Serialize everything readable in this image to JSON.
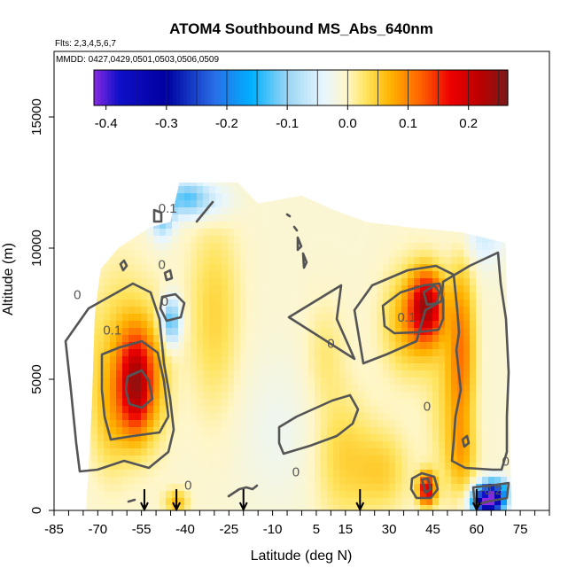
{
  "chart_data": {
    "type": "heatmap",
    "title": "ATOM4 Southbound MS_Abs_640nm",
    "subtitle_lines": [
      "Flts: 2,3,4,5,6,7",
      "MMDD: 0427,0429,0501,0503,0506,0509"
    ],
    "xlabel": "Latitude (deg N)",
    "ylabel": "Altitude (m)",
    "xlim": [
      -85,
      85
    ],
    "ylim": [
      0,
      17500
    ],
    "x_tick_labels": [
      "-85",
      "-70",
      "-55",
      "-40",
      "-25",
      "-10",
      "5",
      "15",
      "30",
      "45",
      "60",
      "75"
    ],
    "x_tick_values": [
      -85,
      -70,
      -55,
      -40,
      -25,
      -10,
      5,
      15,
      30,
      45,
      60,
      75
    ],
    "x_minor_step": 5,
    "y_tick_labels": [
      "0",
      "5000",
      "10000",
      "15000"
    ],
    "y_tick_values": [
      0,
      5000,
      10000,
      15000
    ],
    "colorbar": {
      "range": [
        -0.42,
        0.265
      ],
      "tick_labels": [
        "-0.4",
        "-0.3",
        "-0.2",
        "-0.1",
        "0.0",
        "0.1",
        "0.2"
      ],
      "tick_values": [
        -0.4,
        -0.3,
        -0.2,
        -0.1,
        0.0,
        0.1,
        0.2
      ],
      "stops": [
        {
          "v": -0.42,
          "c": "#8a2be2"
        },
        {
          "v": -0.38,
          "c": "#1010c8"
        },
        {
          "v": -0.3,
          "c": "#0000a0"
        },
        {
          "v": -0.22,
          "c": "#2a6ee8"
        },
        {
          "v": -0.16,
          "c": "#00b0ff"
        },
        {
          "v": -0.1,
          "c": "#9ad6f5"
        },
        {
          "v": -0.04,
          "c": "#e8f6ff"
        },
        {
          "v": 0.0,
          "c": "#fff6c8"
        },
        {
          "v": 0.03,
          "c": "#ffe45e"
        },
        {
          "v": 0.07,
          "c": "#ffb400"
        },
        {
          "v": 0.12,
          "c": "#ff6400"
        },
        {
          "v": 0.17,
          "c": "#ee0000"
        },
        {
          "v": 0.22,
          "c": "#bb0000"
        },
        {
          "v": 0.265,
          "c": "#7a1a1a"
        }
      ]
    },
    "field": {
      "background_value": -0.008,
      "domain": [
        [
          -74,
          0
        ],
        [
          -72,
          4000
        ],
        [
          -71,
          7500
        ],
        [
          -69,
          9200
        ],
        [
          -63,
          10000
        ],
        [
          -52,
          10800
        ],
        [
          -45,
          11000
        ],
        [
          -42,
          12500
        ],
        [
          -22,
          12500
        ],
        [
          -15,
          11700
        ],
        [
          0,
          12000
        ],
        [
          10,
          11500
        ],
        [
          22,
          11000
        ],
        [
          36,
          10800
        ],
        [
          55,
          10600
        ],
        [
          70,
          10200
        ],
        [
          72,
          0
        ]
      ],
      "features": [
        {
          "lat": -57,
          "alt": 4800,
          "v": 0.2,
          "rlat": 5.5,
          "ralt": 1900
        },
        {
          "lat": -62,
          "alt": 5800,
          "v": 0.06,
          "rlat": 10,
          "ralt": 3300
        },
        {
          "lat": -50,
          "alt": 5200,
          "v": 0.05,
          "rlat": 6,
          "ralt": 2600
        },
        {
          "lat": -66,
          "alt": 3500,
          "v": 0.04,
          "rlat": 6,
          "ralt": 2200
        },
        {
          "lat": -75,
          "alt": 6500,
          "v": 0.03,
          "rlat": 4,
          "ralt": 2500
        },
        {
          "lat": -45,
          "alt": 7200,
          "v": -0.14,
          "rlat": 3.5,
          "ralt": 900
        },
        {
          "lat": -48,
          "alt": 11500,
          "v": -0.14,
          "rlat": 4,
          "ralt": 1000
        },
        {
          "lat": -39,
          "alt": 11900,
          "v": -0.12,
          "rlat": 7,
          "ralt": 700
        },
        {
          "lat": -29,
          "alt": 11800,
          "v": -0.04,
          "rlat": 7,
          "ralt": 800
        },
        {
          "lat": -30,
          "alt": 7500,
          "v": 0.05,
          "rlat": 9,
          "ralt": 3800
        },
        {
          "lat": -8,
          "alt": 3000,
          "v": -0.02,
          "rlat": 14,
          "ralt": 2800
        },
        {
          "lat": 8,
          "alt": 6000,
          "v": 0.03,
          "rlat": 7,
          "ralt": 2000
        },
        {
          "lat": 14,
          "alt": 2000,
          "v": 0.05,
          "rlat": 10,
          "ralt": 2500
        },
        {
          "lat": 28,
          "alt": 1500,
          "v": 0.05,
          "rlat": 9,
          "ralt": 1600
        },
        {
          "lat": 43,
          "alt": 7800,
          "v": 0.2,
          "rlat": 5.5,
          "ralt": 1300
        },
        {
          "lat": 37,
          "alt": 7200,
          "v": 0.08,
          "rlat": 9,
          "ralt": 2000
        },
        {
          "lat": 55,
          "alt": 6200,
          "v": 0.1,
          "rlat": 4.5,
          "ralt": 3500
        },
        {
          "lat": 50,
          "alt": 4200,
          "v": 0.04,
          "rlat": 7,
          "ralt": 3500
        },
        {
          "lat": 55,
          "alt": 2000,
          "v": 0.05,
          "rlat": 5,
          "ralt": 1400
        },
        {
          "lat": 43,
          "alt": 800,
          "v": 0.2,
          "rlat": 3,
          "ralt": 600
        },
        {
          "lat": 64,
          "alt": 300,
          "v": -0.42,
          "rlat": 5,
          "ralt": 500
        },
        {
          "lat": 66,
          "alt": 800,
          "v": -0.17,
          "rlat": 5,
          "ralt": 450
        },
        {
          "lat": -43,
          "alt": 300,
          "v": 0.07,
          "rlat": 4,
          "ralt": 500
        },
        {
          "lat": 62,
          "alt": 10500,
          "v": -0.05,
          "rlat": 8,
          "ralt": 1200
        }
      ]
    },
    "contour_labels": [
      "0",
      "0",
      "0",
      "0.1",
      "0",
      "0",
      "0.1",
      "0.1",
      "0",
      "0",
      "0",
      "-0.2"
    ],
    "contour_label_positions": [
      {
        "lat": -77,
        "alt": 8050
      },
      {
        "lat": -48,
        "alt": 9200
      },
      {
        "lat": -39,
        "alt": 800
      },
      {
        "lat": -65,
        "alt": 6700
      },
      {
        "lat": 10,
        "alt": 6200
      },
      {
        "lat": -2,
        "alt": 1300
      },
      {
        "lat": -46,
        "alt": 11350
      },
      {
        "lat": 36,
        "alt": 7200
      },
      {
        "lat": 70,
        "alt": 1700
      },
      {
        "lat": -47,
        "alt": 7800
      },
      {
        "lat": 43,
        "alt": 3800
      },
      {
        "lat": 65,
        "alt": 600
      }
    ],
    "flight_arrow_latitudes": [
      -54,
      -43,
      -20,
      20,
      60
    ]
  }
}
